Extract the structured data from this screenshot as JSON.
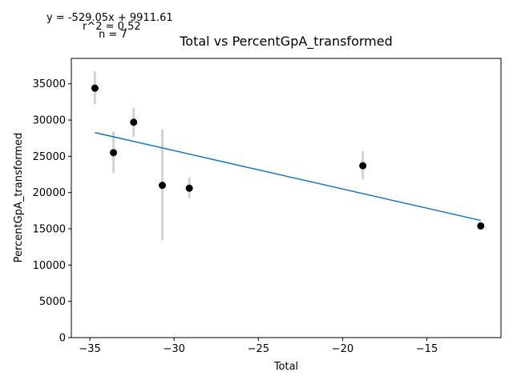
{
  "chart_data": {
    "type": "scatter",
    "title": "Total vs PercentGpA_transformed",
    "xlabel": "Total",
    "ylabel": "PercentGpA_transformed",
    "xlim": [
      -36.1,
      -10.6
    ],
    "ylim": [
      0,
      38500
    ],
    "xticks": [
      -35,
      -30,
      -25,
      -20,
      -15
    ],
    "xtick_labels": [
      "−35",
      "−30",
      "−25",
      "−20",
      "−15"
    ],
    "yticks": [
      0,
      5000,
      10000,
      15000,
      20000,
      25000,
      30000,
      35000
    ],
    "ytick_labels": [
      "0",
      "5000",
      "10000",
      "15000",
      "20000",
      "25000",
      "30000",
      "35000"
    ],
    "grid": false,
    "points": [
      {
        "x": -34.7,
        "y": 34400,
        "err_low": 32200,
        "err_high": 36700
      },
      {
        "x": -33.6,
        "y": 25500,
        "err_low": 22700,
        "err_high": 28400
      },
      {
        "x": -32.4,
        "y": 29700,
        "err_low": 27700,
        "err_high": 31700
      },
      {
        "x": -30.7,
        "y": 21000,
        "err_low": 13400,
        "err_high": 28700
      },
      {
        "x": -29.1,
        "y": 20600,
        "err_low": 19200,
        "err_high": 22100
      },
      {
        "x": -18.8,
        "y": 23700,
        "err_low": 21800,
        "err_high": 25700
      },
      {
        "x": -11.8,
        "y": 15400,
        "err_low": 15400,
        "err_high": 15400
      }
    ],
    "fit": {
      "slope": -529.05,
      "intercept": 9911.61,
      "x_start": -34.7,
      "x_end": -11.8
    },
    "colors": {
      "points": "#000000",
      "errorbars": "#d3d3d3",
      "fit": "#1f77b4"
    },
    "annotations": {
      "equation": "y = -529.05x + 9911.61",
      "r2": "r^2 = 0.52",
      "n": "n = 7"
    }
  }
}
